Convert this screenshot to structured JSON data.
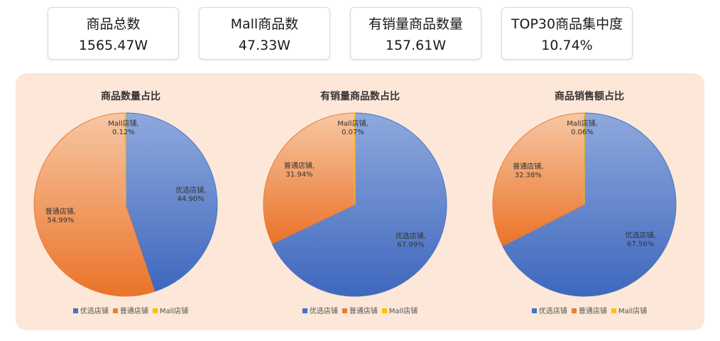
{
  "kpis": [
    {
      "label": "商品总数",
      "value": "1565.47W"
    },
    {
      "label": "Mall商品数",
      "value": "47.33W"
    },
    {
      "label": "有销量商品数量",
      "value": "157.61W"
    },
    {
      "label": "TOP30商品集中度",
      "value": "10.74%"
    }
  ],
  "colors": {
    "youxuan": "#4472c4",
    "putong": "#ed7d31",
    "mall": "#ffc000"
  },
  "chart_data": [
    {
      "type": "pie",
      "title": "商品数量占比",
      "legend_position": "bottom",
      "legend": [
        "优选店铺",
        "普通店铺",
        "Mall店铺"
      ],
      "slices": [
        {
          "label": "优选店铺",
          "value": 44.9,
          "text": "44.90%"
        },
        {
          "label": "普通店铺",
          "value": 54.99,
          "text": "54.99%"
        },
        {
          "label": "Mall店铺",
          "value": 0.12,
          "text": "0.12%"
        }
      ]
    },
    {
      "type": "pie",
      "title": "有销量商品数占比",
      "legend_position": "bottom",
      "legend": [
        "优选店铺",
        "普通店铺",
        "Mall店铺"
      ],
      "slices": [
        {
          "label": "优选店铺",
          "value": 67.99,
          "text": "67.99%"
        },
        {
          "label": "普通店铺",
          "value": 31.94,
          "text": "31.94%"
        },
        {
          "label": "Mall店铺",
          "value": 0.07,
          "text": "0.07%"
        }
      ]
    },
    {
      "type": "pie",
      "title": "商品销售额占比",
      "legend_position": "bottom",
      "legend": [
        "优选店铺",
        "普通店铺",
        "Mall店铺"
      ],
      "slices": [
        {
          "label": "优选店铺",
          "value": 67.56,
          "text": "67.56%"
        },
        {
          "label": "普通店铺",
          "value": 32.38,
          "text": "32.38%"
        },
        {
          "label": "Mall店铺",
          "value": 0.06,
          "text": "0.06%"
        }
      ]
    }
  ]
}
